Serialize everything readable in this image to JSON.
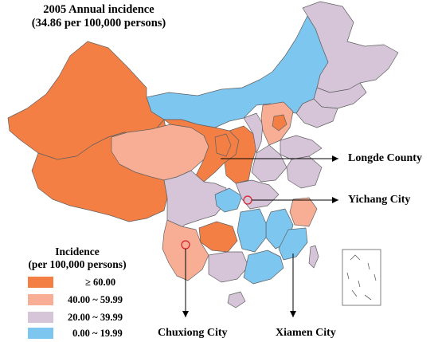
{
  "title": {
    "line1": "2005 Annual incidence",
    "line2": "(34.86 per 100,000 persons)"
  },
  "legend": {
    "title_line1": "Incidence",
    "title_line2": "(per 100,000 persons)",
    "items": [
      {
        "label": "≥ 60.00",
        "color": "#f47f45"
      },
      {
        "label": "40.00 ~ 59.99",
        "color": "#f8ae95"
      },
      {
        "label": "20.00 ~ 39.99",
        "color": "#d6c4d8"
      },
      {
        "label": "0.00 ~ 19.99",
        "color": "#7cc6f0"
      }
    ]
  },
  "callouts": {
    "longde": "Longde  County",
    "yichang": "Yichang City",
    "chuxiong": "Chuxiong City",
    "xiamen": "Xiamen City"
  },
  "colors": {
    "high": "#f47f45",
    "mid_high": "#f8ae95",
    "mid_low": "#d6c4d8",
    "low": "#7cc6f0",
    "border": "#606060",
    "marker": "#d61f2a"
  }
}
